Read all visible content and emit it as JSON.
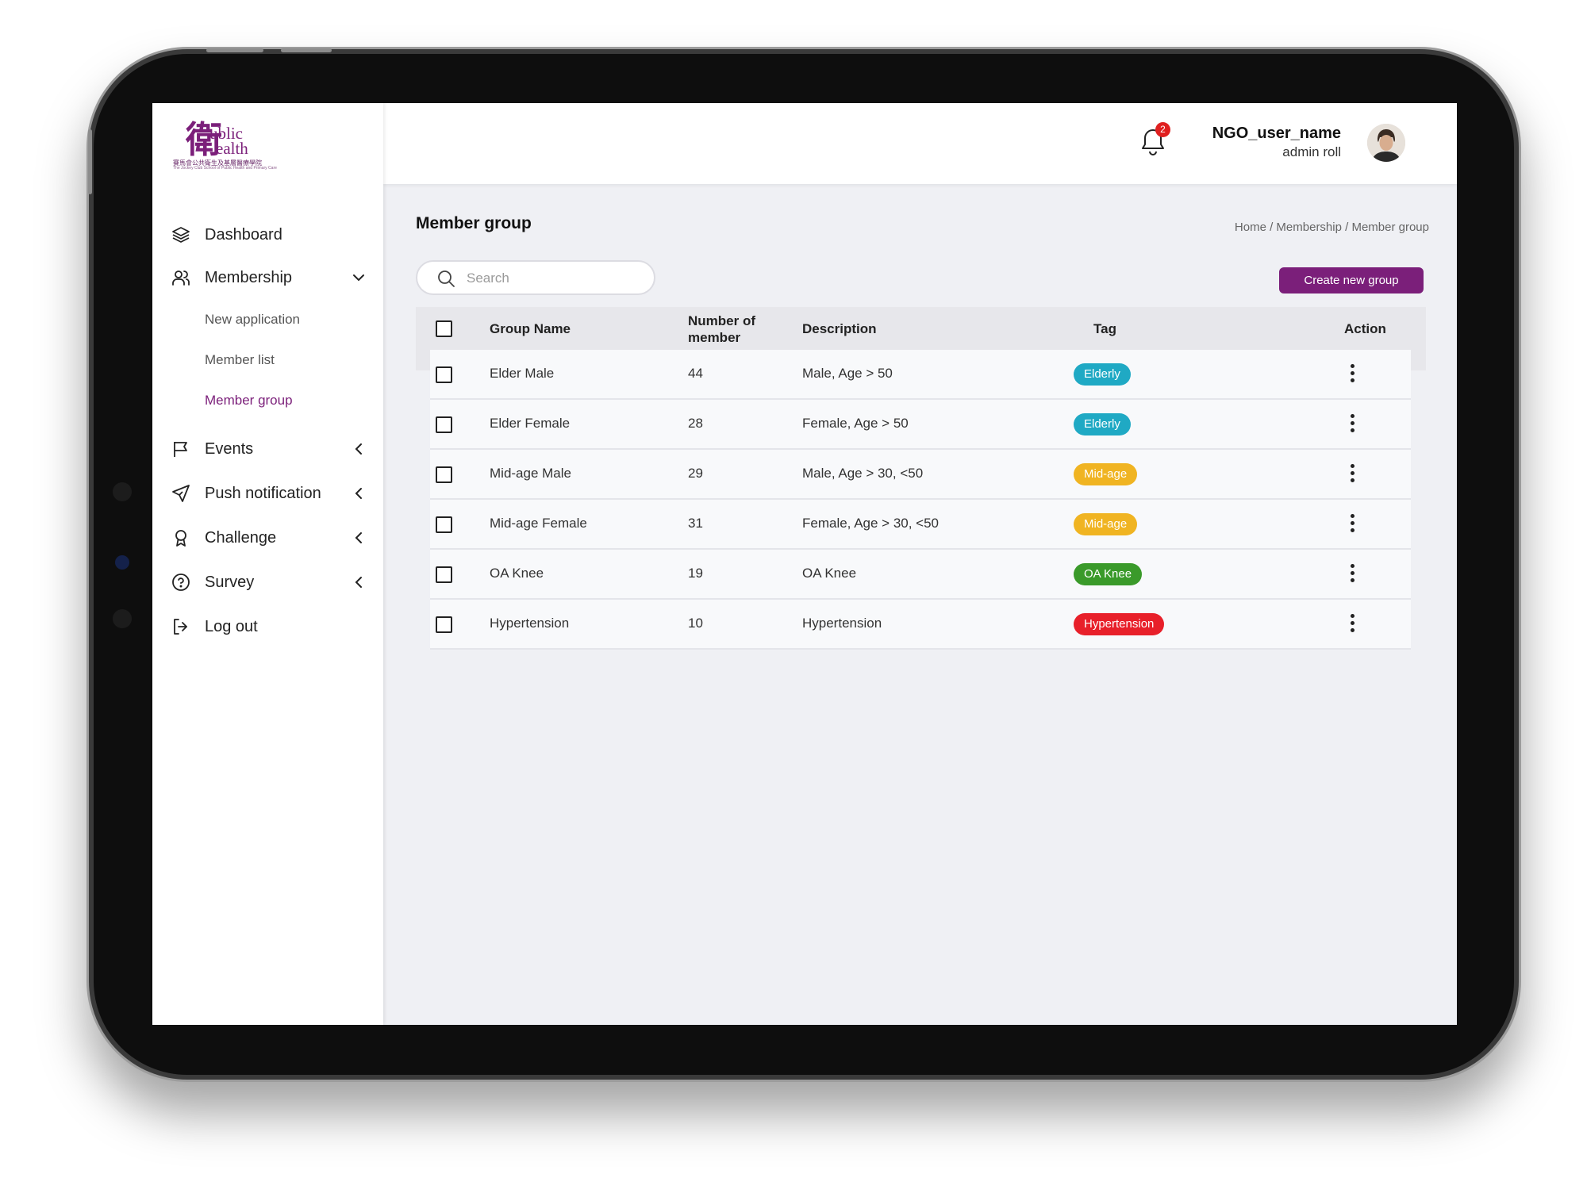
{
  "logo": {
    "glyph": "衛",
    "line1": "ublic",
    "line2": "ealth",
    "sub": "賽馬會公共衛生及基層醫療學院",
    "sub2": "The Jockey Club School of Public Health and Primary Care",
    "brand_color": "#7b1f7a"
  },
  "sidebar": {
    "items": [
      {
        "label": "Dashboard",
        "icon": "layers-icon"
      },
      {
        "label": "Membership",
        "icon": "users-icon",
        "expanded": true
      },
      {
        "label": "Events",
        "icon": "flag-icon"
      },
      {
        "label": "Push notification",
        "icon": "send-icon"
      },
      {
        "label": "Challenge",
        "icon": "award-icon"
      },
      {
        "label": "Survey",
        "icon": "help-circle-icon"
      },
      {
        "label": "Log out",
        "icon": "log-out-icon"
      }
    ],
    "membership_sub": [
      "New application",
      "Member list",
      "Member group"
    ],
    "active_sub": "Member group"
  },
  "header": {
    "notification_count": "2",
    "user_name": "NGO_user_name",
    "user_role": "admin roll"
  },
  "page": {
    "title": "Member group",
    "breadcrumb": "Home / Membership / Member group",
    "search_placeholder": "Search",
    "create_button": "Create new group"
  },
  "table": {
    "headers": {
      "group_name": "Group Name",
      "members_line1": "Number of",
      "members_line2": "member",
      "description": "Description",
      "tag": "Tag",
      "action": "Action"
    },
    "rows": [
      {
        "name": "Elder Male",
        "count": "44",
        "description": "Male, Age > 50",
        "tag": "Elderly",
        "tag_color": "#1fa9c4"
      },
      {
        "name": "Elder Female",
        "count": "28",
        "description": "Female, Age > 50",
        "tag": "Elderly",
        "tag_color": "#1fa9c4"
      },
      {
        "name": "Mid-age Male",
        "count": "29",
        "description": "Male, Age > 30, <50",
        "tag": "Mid-age",
        "tag_color": "#f0b422"
      },
      {
        "name": "Mid-age Female",
        "count": "31",
        "description": "Female, Age > 30, <50",
        "tag": "Mid-age",
        "tag_color": "#f0b422"
      },
      {
        "name": "OA Knee",
        "count": "19",
        "description": "OA Knee",
        "tag": "OA Knee",
        "tag_color": "#3a9a2a"
      },
      {
        "name": "Hypertension",
        "count": "10",
        "description": "Hypertension",
        "tag": "Hypertension",
        "tag_color": "#e8202a"
      }
    ]
  }
}
